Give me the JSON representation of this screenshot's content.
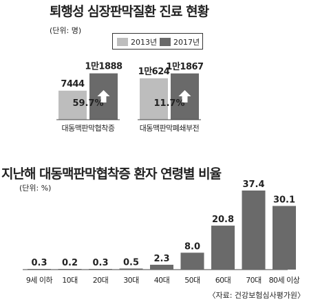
{
  "colors": {
    "y2013": "#bdbdbd",
    "y2017": "#6a6a6a",
    "baseline": "#444444",
    "text": "#222222"
  },
  "chart_data": [
    {
      "type": "bar",
      "title": "퇴행성 심장판막질환 진료 현황",
      "unit": "(단위: 명)",
      "legend": [
        "2013년",
        "2017년"
      ],
      "categories": [
        "대동맥판막협착증",
        "대동맥판막폐쇄부전"
      ],
      "series": [
        {
          "name": "2013년",
          "values": [
            7444,
            10624
          ],
          "labels": [
            "7444",
            "1만624"
          ]
        },
        {
          "name": "2017년",
          "values": [
            11888,
            11867
          ],
          "labels": [
            "1만1888",
            "1만1867"
          ]
        }
      ],
      "growth_labels": [
        "59.7%",
        "11.7%"
      ],
      "growth_icon": "up-arrow-icon"
    },
    {
      "type": "bar",
      "title": "지난해 대동맥판막협착증 환자 연령별 비율",
      "unit": "(단위: %)",
      "categories": [
        "9세 이하",
        "10대",
        "20대",
        "30대",
        "40대",
        "50대",
        "60대",
        "70대",
        "80세 이상"
      ],
      "values": [
        0.3,
        0.2,
        0.3,
        0.5,
        2.3,
        8.0,
        20.8,
        37.4,
        30.1
      ],
      "value_labels": [
        "0.3",
        "0.2",
        "0.3",
        "0.5",
        "2.3",
        "8.0",
        "20.8",
        "37.4",
        "30.1"
      ],
      "bar_color": "#6a6a6a",
      "source": "〈자료: 건강보험심사평가원〉"
    }
  ]
}
